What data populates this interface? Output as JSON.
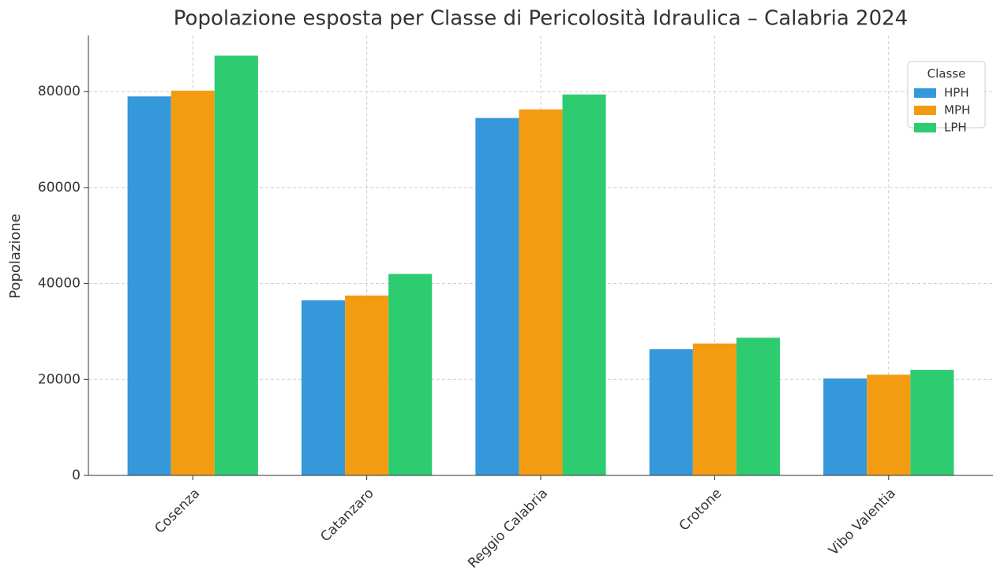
{
  "chart_data": {
    "type": "bar",
    "title": "Popolazione esposta per Classe di Pericolosità Idraulica – Calabria 2024",
    "y_label": "Popolazione",
    "legend_title": "Classe",
    "legend_position": "upper right",
    "grid": true,
    "categories": [
      "Cosenza",
      "Catanzaro",
      "Reggio Calabria",
      "Crotone",
      "Vibo Valentia"
    ],
    "series": [
      {
        "name": "HPH",
        "color": "#3498db",
        "values": [
          79000,
          36500,
          74500,
          26300,
          20200
        ]
      },
      {
        "name": "MPH",
        "color": "#f39c12",
        "values": [
          80200,
          37500,
          76300,
          27500,
          21000
        ]
      },
      {
        "name": "LPH",
        "color": "#2ecc71",
        "values": [
          87500,
          42000,
          79400,
          28700,
          22000
        ]
      }
    ],
    "ylim": [
      0,
      91700
    ],
    "yticks": [
      0,
      20000,
      40000,
      60000,
      80000
    ]
  }
}
